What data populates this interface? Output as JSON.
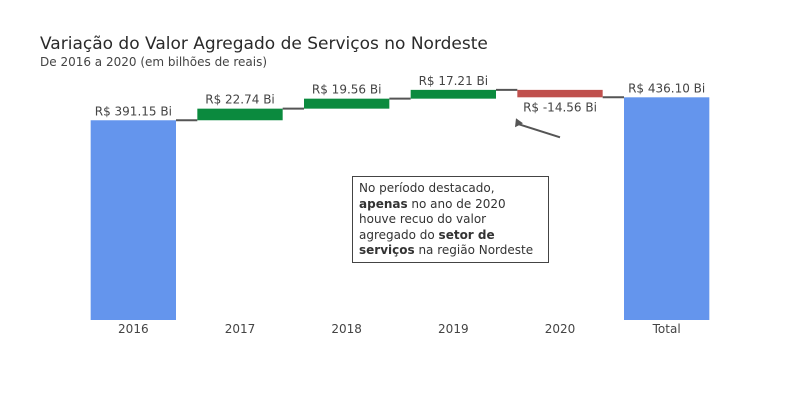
{
  "title": "Variação do Valor Agregado de Serviços no Nordeste",
  "subtitle": "De 2016 a 2020 (em bilhões de reais)",
  "colors": {
    "total": "#6495ED",
    "increase": "#0B8A3E",
    "decrease": "#C0504D",
    "connector": "#555555",
    "text": "#444444"
  },
  "chart_data": {
    "type": "waterfall",
    "categories": [
      "2016",
      "2017",
      "2018",
      "2019",
      "2020",
      "Total"
    ],
    "measures": [
      "absolute",
      "relative",
      "relative",
      "relative",
      "relative",
      "total"
    ],
    "values": [
      391.15,
      22.74,
      19.56,
      17.21,
      -14.56,
      436.1
    ],
    "data_labels": [
      "R$ 391.15 Bi",
      "R$ 22.74 Bi",
      "R$ 19.56 Bi",
      "R$ 17.21 Bi",
      "R$ -14.56 Bi",
      "R$ 436.10 Bi"
    ],
    "title": "Variação do Valor Agregado de Serviços no Nordeste",
    "subtitle": "De 2016 a 2020 (em bilhões de reais)",
    "xlabel": "",
    "ylabel": "",
    "ylim": [
      0,
      470
    ],
    "grid": false,
    "legend": "none"
  },
  "annotation": {
    "target_category": "2020",
    "parts": [
      {
        "text": "No período destacado, ",
        "bold": false
      },
      {
        "text": "apenas",
        "bold": true
      },
      {
        "text": " no ano de 2020 houve recuo do valor agregado do ",
        "bold": false
      },
      {
        "text": "setor de serviços",
        "bold": true
      },
      {
        "text": " na região Nordeste",
        "bold": false
      }
    ]
  }
}
